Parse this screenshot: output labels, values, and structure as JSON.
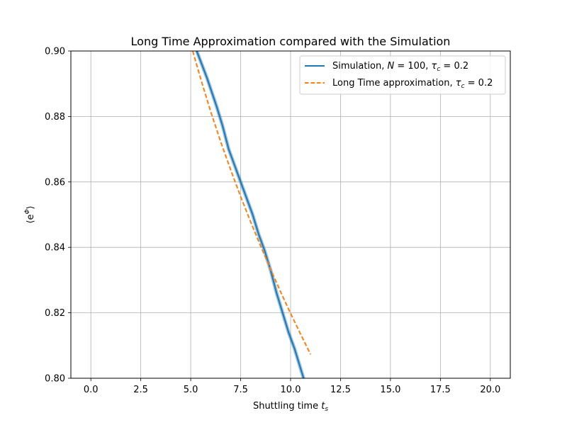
{
  "chart_data": {
    "type": "line",
    "title": "Long Time Approximation compared with the Simulation",
    "xlabel": {
      "text": "Shuttling time ",
      "var": "t",
      "sub": "s"
    },
    "ylabel": {
      "text": "⟨e",
      "sup": "Φ",
      "close": "⟩"
    },
    "xlim": [
      -1.0,
      21.0
    ],
    "ylim": [
      0.8,
      0.9
    ],
    "xticks": [
      0.0,
      2.5,
      5.0,
      7.5,
      10.0,
      12.5,
      15.0,
      17.5,
      20.0
    ],
    "xtick_labels": [
      "0.0",
      "2.5",
      "5.0",
      "7.5",
      "10.0",
      "12.5",
      "15.0",
      "17.5",
      "20.0"
    ],
    "yticks": [
      0.8,
      0.82,
      0.84,
      0.86,
      0.88,
      0.9
    ],
    "ytick_labels": [
      "0.80",
      "0.82",
      "0.84",
      "0.86",
      "0.88",
      "0.90"
    ],
    "grid": true,
    "legend_position": "top-right",
    "series": [
      {
        "legend": {
          "pre": "Simulation, ",
          "var1": "N",
          "mid1": " = 100, ",
          "var2": "τ",
          "sub2": "c",
          "mid2": " = 0.2"
        },
        "color": "#1f77b4",
        "style": "solid",
        "x": [
          5.3,
          5.8,
          6.3,
          6.6,
          6.9,
          7.2,
          7.5,
          7.8,
          8.1,
          8.4,
          8.7,
          9.0,
          9.3,
          9.6,
          9.9,
          10.2,
          10.5,
          10.8
        ],
        "y": [
          0.9,
          0.892,
          0.883,
          0.877,
          0.87,
          0.865,
          0.86,
          0.855,
          0.85,
          0.844,
          0.839,
          0.833,
          0.826,
          0.82,
          0.814,
          0.809,
          0.803,
          0.797
        ]
      },
      {
        "legend": {
          "pre": "Long Time approximation, ",
          "var2": "τ",
          "sub2": "c",
          "mid2": " = 0.2"
        },
        "color": "#ff7f0e",
        "style": "dashed",
        "x": [
          5.1,
          5.5,
          6.0,
          6.5,
          7.0,
          7.5,
          8.0,
          8.5,
          9.0,
          9.5,
          10.0,
          10.5,
          11.0
        ],
        "y": [
          0.9,
          0.8915,
          0.8815,
          0.8723,
          0.8637,
          0.8555,
          0.8478,
          0.8404,
          0.8333,
          0.8264,
          0.8198,
          0.8135,
          0.8073
        ]
      }
    ]
  }
}
